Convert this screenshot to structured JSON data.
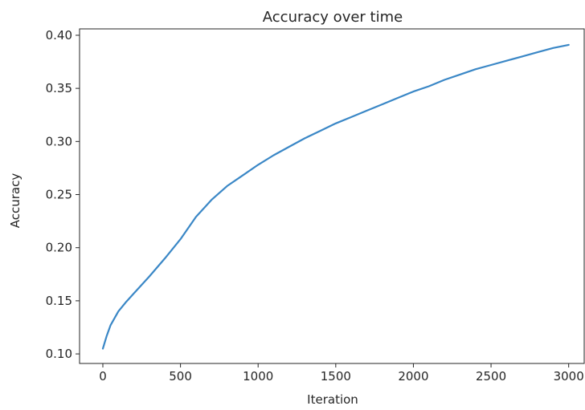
{
  "chart_data": {
    "type": "line",
    "title": "Accuracy over time",
    "xlabel": "Iteration",
    "ylabel": "Accuracy",
    "xlim": [
      -150,
      3100
    ],
    "ylim": [
      0.091,
      0.406
    ],
    "grid": false,
    "xticks": [
      0,
      500,
      1000,
      1500,
      2000,
      2500,
      3000
    ],
    "xtick_labels": [
      "0",
      "500",
      "1000",
      "1500",
      "2000",
      "2500",
      "3000"
    ],
    "yticks": [
      0.1,
      0.15,
      0.2,
      0.25,
      0.3,
      0.35,
      0.4
    ],
    "ytick_labels": [
      "0.10",
      "0.15",
      "0.20",
      "0.25",
      "0.30",
      "0.35",
      "0.40"
    ],
    "line_color": "#3a87c6",
    "series": [
      {
        "x": [
          0,
          25,
          50,
          100,
          150,
          200,
          300,
          400,
          500,
          600,
          700,
          800,
          900,
          1000,
          1100,
          1200,
          1300,
          1400,
          1500,
          1600,
          1700,
          1800,
          1900,
          2000,
          2100,
          2200,
          2300,
          2400,
          2500,
          2600,
          2700,
          2800,
          2900,
          3000
        ],
        "y": [
          0.105,
          0.117,
          0.127,
          0.14,
          0.149,
          0.157,
          0.173,
          0.19,
          0.208,
          0.229,
          0.245,
          0.258,
          0.268,
          0.278,
          0.287,
          0.295,
          0.303,
          0.31,
          0.317,
          0.323,
          0.329,
          0.335,
          0.341,
          0.347,
          0.352,
          0.358,
          0.363,
          0.368,
          0.372,
          0.376,
          0.38,
          0.384,
          0.388,
          0.391
        ]
      }
    ]
  }
}
